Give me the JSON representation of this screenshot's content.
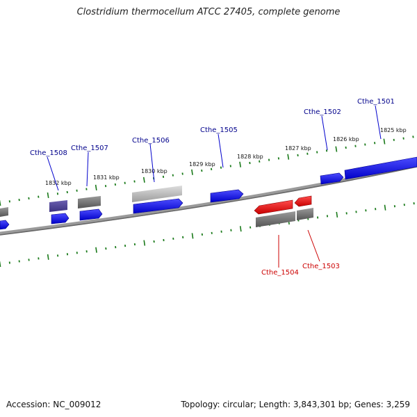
{
  "title": "Clostridium thermocellum ATCC 27405, complete genome",
  "footer": {
    "accession": "Accession: NC_009012",
    "summary": "Topology: circular; Length: 3,843,301 bp; Genes: 3,259"
  },
  "ruler": {
    "labels": [
      "1832 kbp",
      "1831 kbp",
      "1830 kbp",
      "1829 kbp",
      "1828 kbp",
      "1827 kbp",
      "1826 kbp",
      "1825 kbp"
    ]
  },
  "genes": [
    {
      "name": "Cthe_1508",
      "strand": "forward",
      "color": "#00008b"
    },
    {
      "name": "Cthe_1507",
      "strand": "forward",
      "color": "#00008b"
    },
    {
      "name": "Cthe_1506",
      "strand": "forward",
      "color": "#00008b"
    },
    {
      "name": "Cthe_1505",
      "strand": "forward",
      "color": "#00008b"
    },
    {
      "name": "Cthe_1502",
      "strand": "forward",
      "color": "#00008b"
    },
    {
      "name": "Cthe_1501",
      "strand": "forward",
      "color": "#00008b"
    },
    {
      "name": "Cthe_1504",
      "strand": "reverse",
      "color": "#cc0000"
    },
    {
      "name": "Cthe_1503",
      "strand": "reverse",
      "color": "#cc0000"
    }
  ],
  "colors": {
    "forward_feature": "#0000ee",
    "reverse_feature": "#ee0000",
    "ruler_tick": "#1a7a1a",
    "backbone": "#808080"
  }
}
